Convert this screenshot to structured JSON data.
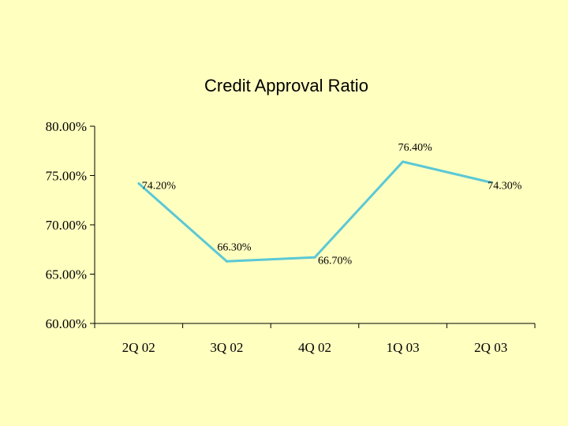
{
  "chart_data": {
    "type": "line",
    "title": "Credit Approval Ratio",
    "categories": [
      "2Q 02",
      "3Q 02",
      "4Q 02",
      "1Q 03",
      "2Q 03"
    ],
    "series": [
      {
        "values": [
          74.2,
          66.3,
          66.7,
          76.4,
          74.3
        ],
        "labels": [
          "74.20%",
          "66.30%",
          "66.70%",
          "76.40%",
          "74.30%"
        ],
        "color": "#5BC8D6"
      }
    ],
    "y_ticks": [
      "80.00%",
      "75.00%",
      "70.00%",
      "65.00%",
      "60.00%"
    ],
    "ylim": [
      60,
      80
    ],
    "grid": false,
    "legend": "none",
    "background_color": "#FFFFC0"
  }
}
